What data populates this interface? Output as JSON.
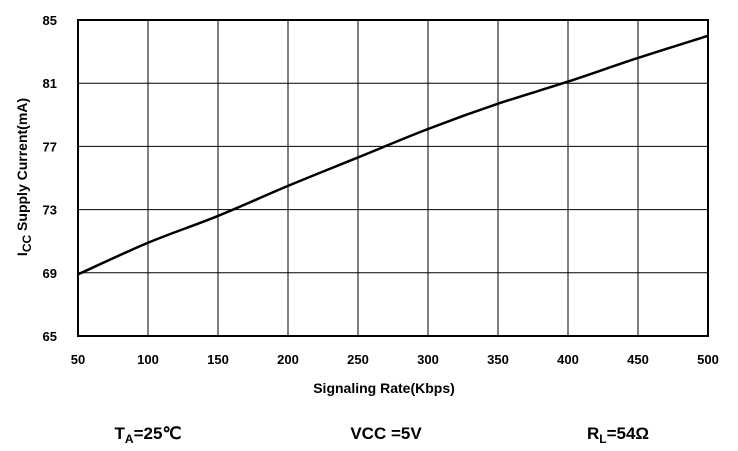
{
  "chart_data": {
    "type": "line",
    "title": "",
    "xlabel": "Signaling Rate(Kbps)",
    "ylabel": {
      "main": "I",
      "sub": "CC",
      "rest": " Supply Current(mA)"
    },
    "xlim": [
      50,
      500
    ],
    "ylim": [
      65,
      85
    ],
    "xticks": [
      50,
      100,
      150,
      200,
      250,
      300,
      350,
      400,
      450,
      500
    ],
    "yticks": [
      65,
      69,
      73,
      77,
      81,
      85
    ],
    "grid": true,
    "legend": "none",
    "line_color": "#000000",
    "series": [
      {
        "x": [
          50,
          100,
          150,
          200,
          250,
          300,
          350,
          400,
          450,
          500
        ],
        "y": [
          68.9,
          70.9,
          72.6,
          74.5,
          76.3,
          78.1,
          79.7,
          81.1,
          82.6,
          84.0
        ]
      }
    ]
  },
  "conditions": [
    {
      "main": "T",
      "sub": "A",
      "rest": "=25℃"
    },
    {
      "main": "VCC =5V",
      "sub": "",
      "rest": ""
    },
    {
      "main": "R",
      "sub": "L",
      "rest": "=54Ω"
    }
  ]
}
